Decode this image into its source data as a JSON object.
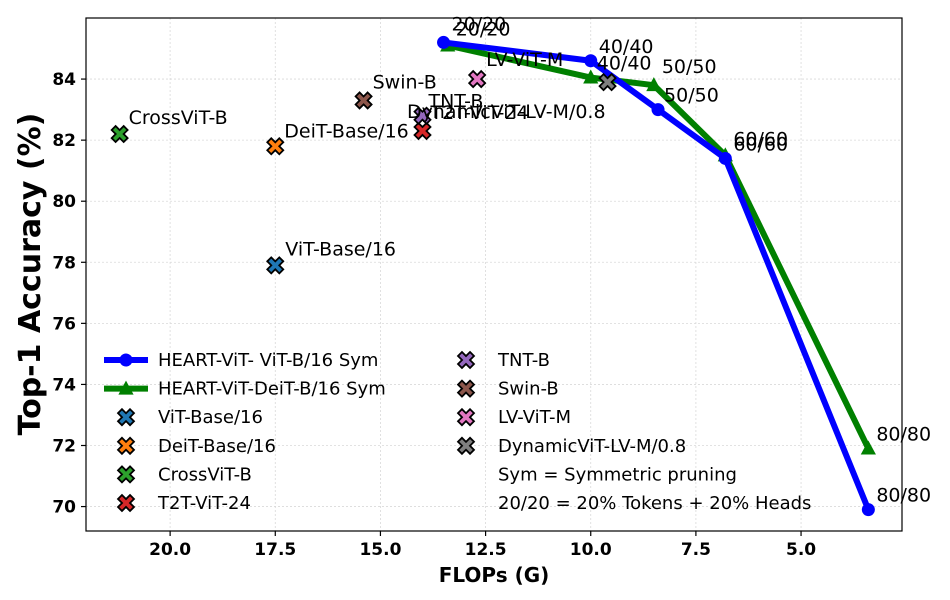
{
  "chart_data": {
    "type": "scatter",
    "title": "",
    "xlabel": "FLOPs (G)",
    "ylabel": "Top-1 Accuracy (%)",
    "xlim": [
      22.0,
      2.6
    ],
    "ylim": [
      69.2,
      86.0
    ],
    "xticks": [
      20.0,
      17.5,
      15.0,
      12.5,
      10.0,
      7.5,
      5.0
    ],
    "xtick_labels": [
      "20.0",
      "17.5",
      "15.0",
      "12.5",
      "10.0",
      "7.5",
      "5.0"
    ],
    "yticks": [
      70,
      72,
      74,
      76,
      78,
      80,
      82,
      84
    ],
    "ytick_labels": [
      "70",
      "72",
      "74",
      "76",
      "78",
      "80",
      "82",
      "84"
    ],
    "grid": true,
    "series": [
      {
        "name": "HEART-ViT- ViT-B/16 Sym",
        "kind": "line",
        "marker": "circle",
        "color": "#0000ff",
        "points": [
          {
            "x": 13.5,
            "y": 85.2,
            "label": "20/20"
          },
          {
            "x": 10.0,
            "y": 84.6,
            "label": "40/40"
          },
          {
            "x": 8.4,
            "y": 83.0,
            "label": "50/50"
          },
          {
            "x": 6.8,
            "y": 81.4,
            "label": "60/60"
          },
          {
            "x": 3.4,
            "y": 69.9,
            "label": "80/80"
          }
        ]
      },
      {
        "name": "HEART-ViT-DeiT-B/16 Sym",
        "kind": "line",
        "marker": "triangle",
        "color": "#008000",
        "points": [
          {
            "x": 13.4,
            "y": 85.1,
            "label": "20/20"
          },
          {
            "x": 10.0,
            "y": 84.05,
            "label": "40/40"
          },
          {
            "x": 8.5,
            "y": 83.8,
            "label": "50/50"
          },
          {
            "x": 6.8,
            "y": 81.5,
            "label": "60/60"
          },
          {
            "x": 3.4,
            "y": 71.9,
            "label": "80/80"
          }
        ]
      }
    ],
    "baselines": [
      {
        "name": "ViT-Base/16",
        "x": 17.5,
        "y": 77.9,
        "color": "#1f77b4"
      },
      {
        "name": "DeiT-Base/16",
        "x": 17.5,
        "y": 81.8,
        "color": "#ff7f0e"
      },
      {
        "name": "CrossViT-B",
        "x": 21.2,
        "y": 82.2,
        "color": "#2ca02c"
      },
      {
        "name": "T2T-ViT-24",
        "x": 14.0,
        "y": 82.3,
        "color": "#d62728"
      },
      {
        "name": "TNT-B",
        "x": 14.0,
        "y": 82.8,
        "color": "#9467bd"
      },
      {
        "name": "Swin-B",
        "x": 15.4,
        "y": 83.3,
        "color": "#8c564b"
      },
      {
        "name": "LV-ViT-M",
        "x": 12.7,
        "y": 84.0,
        "color": "#e377c2"
      },
      {
        "name": "DynamicViT-LV-M/0.8",
        "x": 9.6,
        "y": 83.9,
        "color": "#7f7f7f"
      }
    ],
    "legend": {
      "placement": "lower-left",
      "notes": [
        "Sym = Symmetric pruning",
        "20/20 = 20% Tokens + 20% Heads"
      ]
    }
  }
}
